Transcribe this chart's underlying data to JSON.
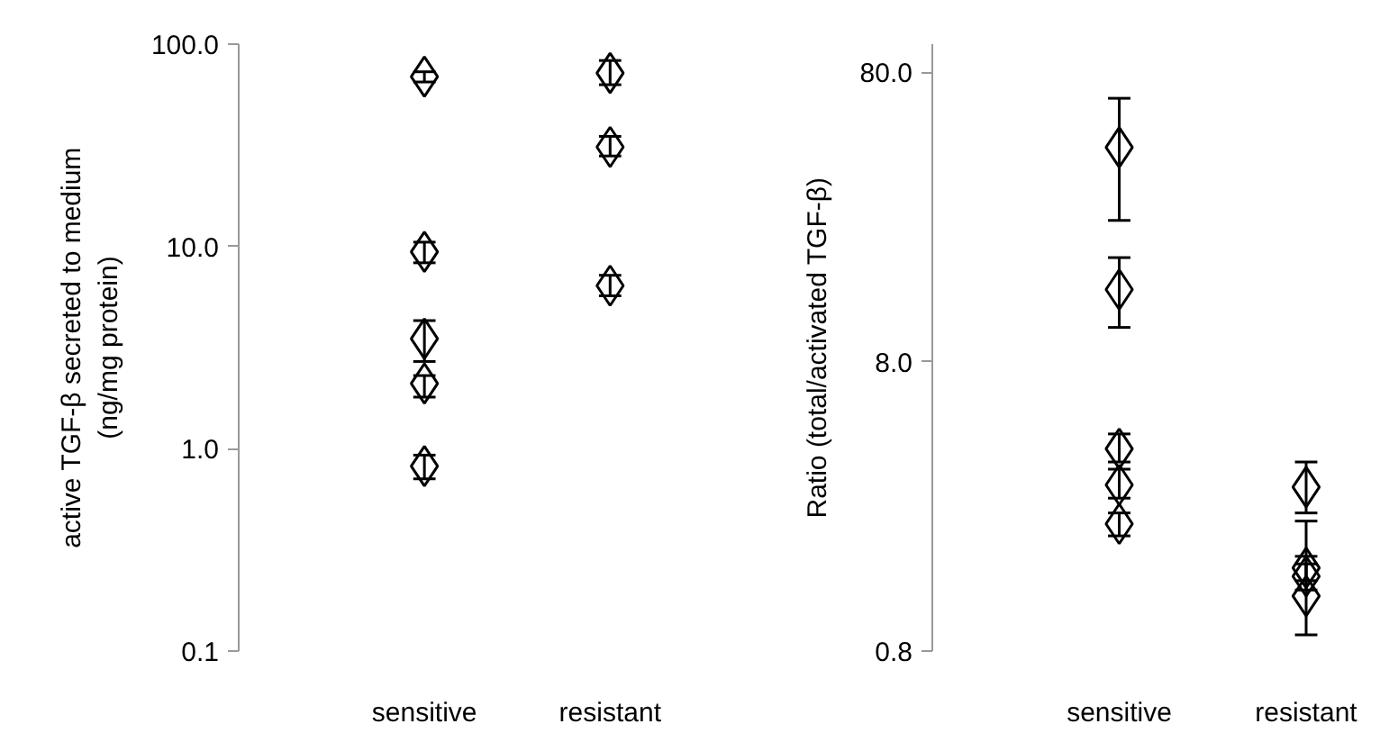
{
  "chart_data": [
    {
      "type": "scatter",
      "ylabel": "active TGF-β secreted to medium\n(ng/mg protein)",
      "categories": [
        "sensitive",
        "resistant"
      ],
      "log": "y",
      "ylim": [
        0.1,
        100
      ],
      "yticks": [
        {
          "value": 0.1,
          "label": "0.1"
        },
        {
          "value": 1,
          "label": "1.0"
        },
        {
          "value": 10,
          "label": "10.0"
        },
        {
          "value": 100,
          "label": "100.0"
        }
      ],
      "grid": false,
      "marker": "diamond",
      "series": [
        {
          "color": "#000000",
          "x": [
            "sensitive",
            "sensitive",
            "sensitive",
            "sensitive",
            "sensitive",
            "resistant",
            "resistant",
            "resistant"
          ],
          "values": [
            69,
            9.4,
            3.5,
            2.1,
            0.82,
            72,
            31,
            6.4
          ],
          "errors": [
            [
              65,
              73
            ],
            [
              8.3,
              10.5
            ],
            [
              2.7,
              4.3
            ],
            [
              1.8,
              2.3
            ],
            [
              0.71,
              0.93
            ],
            [
              63,
              83
            ],
            [
              28,
              35
            ],
            [
              5.7,
              7.2
            ]
          ]
        }
      ]
    },
    {
      "type": "scatter",
      "ylabel": "Ratio (total/activated TGF-β)",
      "categories": [
        "sensitive",
        "resistant"
      ],
      "log": "y",
      "ylim": [
        0.8,
        100
      ],
      "yticks": [
        {
          "value": 0.8,
          "label": "0.8"
        },
        {
          "value": 8,
          "label": "8.0"
        },
        {
          "value": 80,
          "label": "80.0"
        }
      ],
      "grid": false,
      "marker": "diamond",
      "series": [
        {
          "color": "#000000",
          "x": [
            "sensitive",
            "sensitive",
            "sensitive",
            "sensitive",
            "sensitive",
            "resistant",
            "resistant",
            "resistant",
            "resistant"
          ],
          "values": [
            44,
            14.2,
            4.0,
            3.0,
            2.2,
            2.95,
            1.55,
            1.45,
            1.24
          ],
          "errors": [
            [
              24.6,
              65
            ],
            [
              10.5,
              18.3
            ],
            [
              3.6,
              4.5
            ],
            [
              2.7,
              3.4
            ],
            [
              2.0,
              2.4
            ],
            [
              2.4,
              3.6
            ],
            [
              1.4,
              1.7
            ],
            [
              1.3,
              1.6
            ],
            [
              0.91,
              2.25
            ]
          ]
        }
      ]
    }
  ]
}
